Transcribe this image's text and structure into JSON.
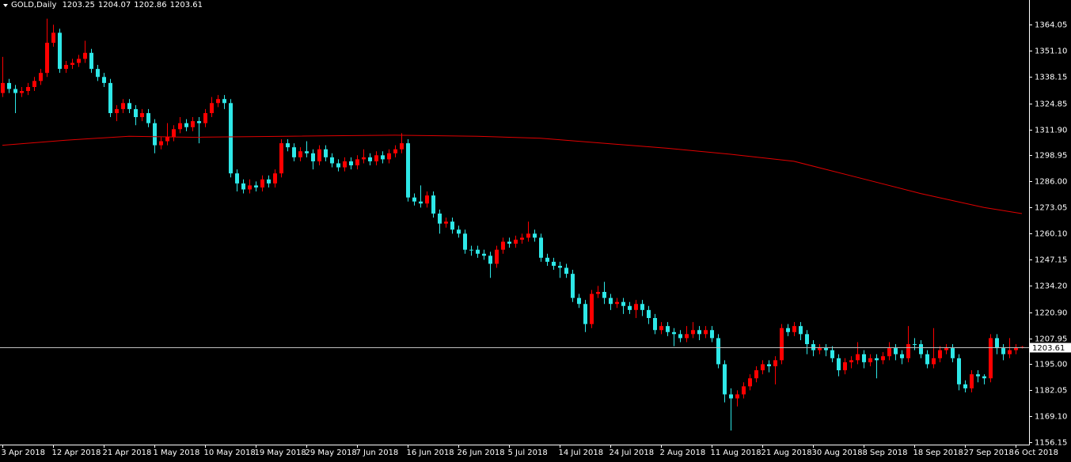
{
  "chart_data": {
    "type": "candlestick",
    "title": "GOLD,Daily",
    "open": [
      1330,
      1335,
      1332,
      1330,
      1331,
      1333,
      1336,
      1340,
      1355,
      1360,
      1342,
      1344,
      1345,
      1347,
      1350,
      1342,
      1338,
      1335,
      1320,
      1322,
      1325,
      1322,
      1318,
      1320,
      1315,
      1304,
      1306,
      1308,
      1312,
      1315,
      1313,
      1316,
      1315,
      1320,
      1325,
      1327,
      1325,
      1290,
      1285,
      1282,
      1284,
      1283,
      1287,
      1285,
      1290,
      1305,
      1303,
      1298,
      1301,
      1300,
      1296,
      1302,
      1298,
      1295,
      1293,
      1296,
      1294,
      1297,
      1298,
      1296,
      1299,
      1297,
      1300,
      1302,
      1305,
      1278,
      1276,
      1275,
      1279,
      1270,
      1265,
      1266,
      1262,
      1260,
      1252,
      1252,
      1250,
      1249,
      1245,
      1252,
      1256,
      1255,
      1257,
      1258,
      1260,
      1258,
      1248,
      1246,
      1244,
      1243,
      1240,
      1228,
      1225,
      1215,
      1230,
      1231,
      1228,
      1225,
      1226,
      1224,
      1222,
      1225,
      1222,
      1218,
      1212,
      1214,
      1211,
      1210,
      1208,
      1210,
      1212,
      1210,
      1212,
      1208,
      1195,
      1180,
      1178,
      1180,
      1184,
      1188,
      1192,
      1195,
      1194,
      1197,
      1213,
      1211,
      1214,
      1210,
      1205,
      1202,
      1203,
      1202,
      1198,
      1192,
      1196,
      1197,
      1200,
      1196,
      1198,
      1197,
      1199,
      1203,
      1200,
      1198,
      1205,
      1205,
      1200,
      1195,
      1198,
      1202,
      1203,
      1198,
      1185,
      1183,
      1190,
      1189,
      1188,
      1208,
      1203,
      1200,
      1202,
      1203.25
    ],
    "high": [
      1348,
      1337,
      1334,
      1333,
      1335,
      1338,
      1342,
      1367,
      1364,
      1362,
      1346,
      1347,
      1349,
      1356,
      1352,
      1344,
      1340,
      1337,
      1324,
      1327,
      1327,
      1324,
      1322,
      1322,
      1317,
      1308,
      1315,
      1314,
      1318,
      1317,
      1318,
      1318,
      1322,
      1328,
      1329,
      1329,
      1327,
      1292,
      1287,
      1287,
      1286,
      1289,
      1289,
      1292,
      1307,
      1307,
      1305,
      1303,
      1306,
      1302,
      1304,
      1304,
      1300,
      1297,
      1298,
      1298,
      1299,
      1302,
      1300,
      1301,
      1301,
      1302,
      1304,
      1310,
      1307,
      1280,
      1284,
      1281,
      1281,
      1272,
      1268,
      1268,
      1264,
      1262,
      1254,
      1254,
      1252,
      1251,
      1254,
      1258,
      1258,
      1259,
      1260,
      1266,
      1262,
      1260,
      1250,
      1248,
      1246,
      1245,
      1242,
      1230,
      1227,
      1232,
      1234,
      1236,
      1230,
      1228,
      1228,
      1226,
      1227,
      1227,
      1224,
      1220,
      1216,
      1216,
      1213,
      1212,
      1214,
      1216,
      1214,
      1214,
      1214,
      1210,
      1197,
      1183,
      1182,
      1186,
      1190,
      1194,
      1197,
      1197,
      1199,
      1215,
      1215,
      1216,
      1216,
      1212,
      1207,
      1205,
      1205,
      1204,
      1200,
      1198,
      1199,
      1206,
      1202,
      1200,
      1200,
      1201,
      1206,
      1205,
      1202,
      1214,
      1208,
      1207,
      1202,
      1213,
      1204,
      1205,
      1205,
      1200,
      1187,
      1192,
      1192,
      1190,
      1210,
      1210,
      1205,
      1208,
      1205,
      1204.07
    ],
    "low": [
      1328,
      1330,
      1320,
      1328,
      1329,
      1331,
      1334,
      1338,
      1353,
      1340,
      1340,
      1342,
      1343,
      1345,
      1340,
      1336,
      1333,
      1318,
      1316,
      1320,
      1320,
      1314,
      1316,
      1313,
      1300,
      1302,
      1304,
      1306,
      1310,
      1311,
      1311,
      1305,
      1313,
      1318,
      1323,
      1322,
      1288,
      1281,
      1280,
      1280,
      1281,
      1281,
      1283,
      1283,
      1288,
      1301,
      1296,
      1296,
      1298,
      1292,
      1294,
      1296,
      1293,
      1291,
      1291,
      1292,
      1292,
      1295,
      1294,
      1294,
      1295,
      1295,
      1298,
      1300,
      1276,
      1274,
      1273,
      1273,
      1268,
      1260,
      1263,
      1260,
      1258,
      1250,
      1249,
      1248,
      1247,
      1238,
      1243,
      1250,
      1253,
      1253,
      1255,
      1256,
      1256,
      1246,
      1244,
      1242,
      1238,
      1238,
      1226,
      1223,
      1211,
      1213,
      1228,
      1225,
      1222,
      1223,
      1220,
      1220,
      1218,
      1219,
      1215,
      1210,
      1210,
      1209,
      1204,
      1206,
      1206,
      1208,
      1207,
      1208,
      1206,
      1193,
      1176,
      1162,
      1174,
      1178,
      1182,
      1186,
      1190,
      1191,
      1185,
      1195,
      1209,
      1209,
      1207,
      1200,
      1199,
      1200,
      1199,
      1196,
      1189,
      1190,
      1193,
      1195,
      1193,
      1194,
      1188,
      1195,
      1197,
      1197,
      1195,
      1196,
      1202,
      1198,
      1193,
      1193,
      1196,
      1200,
      1196,
      1182,
      1181,
      1181,
      1186,
      1185,
      1186,
      1200,
      1197,
      1198,
      1200,
      1202.86
    ],
    "close": [
      1335,
      1332,
      1330,
      1331,
      1333,
      1336,
      1340,
      1355,
      1360,
      1342,
      1344,
      1345,
      1347,
      1350,
      1342,
      1338,
      1335,
      1320,
      1322,
      1325,
      1322,
      1318,
      1320,
      1315,
      1304,
      1306,
      1308,
      1312,
      1315,
      1313,
      1316,
      1315,
      1320,
      1325,
      1327,
      1325,
      1290,
      1285,
      1282,
      1284,
      1283,
      1287,
      1285,
      1290,
      1305,
      1303,
      1298,
      1301,
      1300,
      1296,
      1302,
      1298,
      1295,
      1293,
      1296,
      1294,
      1297,
      1298,
      1296,
      1299,
      1297,
      1300,
      1302,
      1305,
      1278,
      1276,
      1275,
      1279,
      1270,
      1265,
      1266,
      1262,
      1260,
      1252,
      1252,
      1250,
      1249,
      1245,
      1252,
      1256,
      1255,
      1257,
      1258,
      1260,
      1258,
      1248,
      1246,
      1244,
      1243,
      1240,
      1228,
      1225,
      1215,
      1230,
      1231,
      1228,
      1225,
      1226,
      1224,
      1222,
      1225,
      1222,
      1218,
      1212,
      1214,
      1211,
      1210,
      1208,
      1210,
      1212,
      1210,
      1212,
      1208,
      1195,
      1180,
      1178,
      1180,
      1184,
      1188,
      1192,
      1195,
      1194,
      1197,
      1213,
      1211,
      1214,
      1210,
      1205,
      1202,
      1203,
      1202,
      1198,
      1192,
      1196,
      1197,
      1200,
      1196,
      1198,
      1197,
      1199,
      1203,
      1200,
      1198,
      1205,
      1205,
      1200,
      1195,
      1198,
      1202,
      1203,
      1198,
      1185,
      1183,
      1190,
      1189,
      1188,
      1208,
      1203,
      1200,
      1202,
      1203.25,
      1203.61
    ],
    "up_color": "#ff0000",
    "down_color": "#2ee8e8",
    "ma_x": [
      0,
      10,
      20,
      30,
      45,
      62,
      75,
      85,
      95,
      105,
      115,
      125,
      135,
      145,
      155,
      161
    ],
    "ma": [
      1304,
      1306.5,
      1308.5,
      1308,
      1308.5,
      1309,
      1308.5,
      1307.5,
      1305,
      1302.5,
      1299.5,
      1296,
      1288,
      1280,
      1273,
      1270
    ],
    "ma_color": "#e00000",
    "xlim": [
      -0.375,
      162.125
    ],
    "ylim": [
      1155,
      1376.3
    ],
    "yticks": [
      1364.05,
      {
        "value": 1351.1,
        "label": "1351.10"
      },
      1338.15,
      1324.85,
      {
        "value": 1311.9,
        "label": "1311.90"
      },
      1298.95,
      {
        "value": 1286,
        "label": "1286.00"
      },
      1273.05,
      {
        "value": 1260.1,
        "label": "1260.10"
      },
      1247.15,
      {
        "value": 1234.2,
        "label": "1234.20"
      },
      {
        "value": 1220.9,
        "label": "1220.90"
      },
      1207.95,
      {
        "value": 1195,
        "label": "1195.00"
      },
      1182.05,
      {
        "value": 1169.1,
        "label": "1169.10"
      },
      1156.15
    ],
    "xticks": [
      {
        "value": 0,
        "label": "3 Apr 2018"
      },
      {
        "value": 8,
        "label": "12 Apr 2018"
      },
      {
        "value": 16,
        "label": "21 Apr 2018"
      },
      {
        "value": 24,
        "label": "1 May 2018"
      },
      {
        "value": 32,
        "label": "10 May 2018"
      },
      {
        "value": 40,
        "label": "19 May 2018"
      },
      {
        "value": 48,
        "label": "29 May 2018"
      },
      {
        "value": 56,
        "label": "7 Jun 2018"
      },
      {
        "value": 64,
        "label": "16 Jun 2018"
      },
      {
        "value": 72,
        "label": "26 Jun 2018"
      },
      {
        "value": 80,
        "label": "5 Jul 2018"
      },
      {
        "value": 88,
        "label": "14 Jul 2018"
      },
      {
        "value": 96,
        "label": "24 Jul 2018"
      },
      {
        "value": 104,
        "label": "2 Aug 2018"
      },
      {
        "value": 112,
        "label": "11 Aug 2018"
      },
      {
        "value": 120,
        "label": "21 Aug 2018"
      },
      {
        "value": 128,
        "label": "30 Aug 2018"
      },
      {
        "value": 136,
        "label": "8 Sep 2018"
      },
      {
        "value": 144,
        "label": "18 Sep 2018"
      },
      {
        "value": 152,
        "label": "27 Sep 2018"
      },
      {
        "value": 160,
        "label": "6 Oct 2018"
      }
    ]
  }
}
